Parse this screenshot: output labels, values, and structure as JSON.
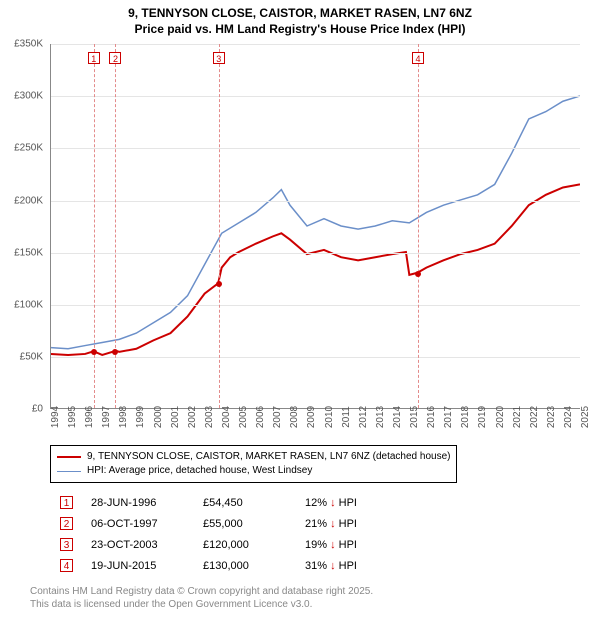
{
  "title_line1": "9, TENNYSON CLOSE, CAISTOR, MARKET RASEN, LN7 6NZ",
  "title_line2": "Price paid vs. HM Land Registry's House Price Index (HPI)",
  "chart": {
    "type": "line",
    "background_color": "#ffffff",
    "grid_color": "#e5e5e5",
    "axis_color": "#888888",
    "tick_fontsize": 10,
    "tick_color": "#555555",
    "x": {
      "min": 1994,
      "max": 2025,
      "tick_step": 1
    },
    "y": {
      "min": 0,
      "max": 350000,
      "tick_step": 50000,
      "prefix": "£",
      "suffix_k": "K"
    },
    "series": [
      {
        "label": "9, TENNYSON CLOSE, CAISTOR, MARKET RASEN, LN7 6NZ (detached house)",
        "color": "#cc0000",
        "width": 2,
        "data": [
          [
            1994,
            52000
          ],
          [
            1995,
            51000
          ],
          [
            1996,
            52000
          ],
          [
            1996.5,
            54450
          ],
          [
            1997,
            51000
          ],
          [
            1997.8,
            55000
          ],
          [
            1998,
            54000
          ],
          [
            1999,
            57000
          ],
          [
            2000,
            65000
          ],
          [
            2001,
            72000
          ],
          [
            2002,
            88000
          ],
          [
            2003,
            110000
          ],
          [
            2003.8,
            120000
          ],
          [
            2004,
            135000
          ],
          [
            2004.5,
            145000
          ],
          [
            2005,
            150000
          ],
          [
            2006,
            158000
          ],
          [
            2007,
            165000
          ],
          [
            2007.5,
            168000
          ],
          [
            2008,
            162000
          ],
          [
            2009,
            148000
          ],
          [
            2010,
            152000
          ],
          [
            2011,
            145000
          ],
          [
            2012,
            142000
          ],
          [
            2013,
            145000
          ],
          [
            2014,
            148000
          ],
          [
            2014.8,
            150000
          ],
          [
            2015,
            128000
          ],
          [
            2015.47,
            130000
          ],
          [
            2016,
            135000
          ],
          [
            2017,
            142000
          ],
          [
            2018,
            148000
          ],
          [
            2019,
            152000
          ],
          [
            2020,
            158000
          ],
          [
            2021,
            175000
          ],
          [
            2022,
            195000
          ],
          [
            2023,
            205000
          ],
          [
            2024,
            212000
          ],
          [
            2025,
            215000
          ]
        ]
      },
      {
        "label": "HPI: Average price, detached house, West Lindsey",
        "color": "#6b8fc9",
        "width": 1.5,
        "data": [
          [
            1994,
            58000
          ],
          [
            1995,
            57000
          ],
          [
            1996,
            60000
          ],
          [
            1997,
            63000
          ],
          [
            1998,
            66000
          ],
          [
            1999,
            72000
          ],
          [
            2000,
            82000
          ],
          [
            2001,
            92000
          ],
          [
            2002,
            108000
          ],
          [
            2003,
            138000
          ],
          [
            2004,
            168000
          ],
          [
            2005,
            178000
          ],
          [
            2006,
            188000
          ],
          [
            2007,
            202000
          ],
          [
            2007.5,
            210000
          ],
          [
            2008,
            195000
          ],
          [
            2009,
            175000
          ],
          [
            2010,
            182000
          ],
          [
            2011,
            175000
          ],
          [
            2012,
            172000
          ],
          [
            2013,
            175000
          ],
          [
            2014,
            180000
          ],
          [
            2015,
            178000
          ],
          [
            2016,
            188000
          ],
          [
            2017,
            195000
          ],
          [
            2018,
            200000
          ],
          [
            2019,
            205000
          ],
          [
            2020,
            215000
          ],
          [
            2021,
            245000
          ],
          [
            2022,
            278000
          ],
          [
            2023,
            285000
          ],
          [
            2024,
            295000
          ],
          [
            2025,
            300000
          ]
        ]
      }
    ],
    "events": [
      {
        "n": "1",
        "year": 1996.5,
        "price": 54450
      },
      {
        "n": "2",
        "year": 1997.77,
        "price": 55000
      },
      {
        "n": "3",
        "year": 2003.81,
        "price": 120000
      },
      {
        "n": "4",
        "year": 2015.47,
        "price": 130000
      }
    ]
  },
  "legend": {
    "items": [
      {
        "color": "#cc0000",
        "width": 2,
        "label": "9, TENNYSON CLOSE, CAISTOR, MARKET RASEN, LN7 6NZ (detached house)"
      },
      {
        "color": "#6b8fc9",
        "width": 1.5,
        "label": "HPI: Average price, detached house, West Lindsey"
      }
    ]
  },
  "events_table": {
    "rows": [
      {
        "n": "1",
        "date": "28-JUN-1996",
        "price": "£54,450",
        "pct": "12%",
        "dir": "↓",
        "suffix": "HPI"
      },
      {
        "n": "2",
        "date": "06-OCT-1997",
        "price": "£55,000",
        "pct": "21%",
        "dir": "↓",
        "suffix": "HPI"
      },
      {
        "n": "3",
        "date": "23-OCT-2003",
        "price": "£120,000",
        "pct": "19%",
        "dir": "↓",
        "suffix": "HPI"
      },
      {
        "n": "4",
        "date": "19-JUN-2015",
        "price": "£130,000",
        "pct": "31%",
        "dir": "↓",
        "suffix": "HPI"
      }
    ]
  },
  "footer_line1": "Contains HM Land Registry data © Crown copyright and database right 2025.",
  "footer_line2": "This data is licensed under the Open Government Licence v3.0."
}
